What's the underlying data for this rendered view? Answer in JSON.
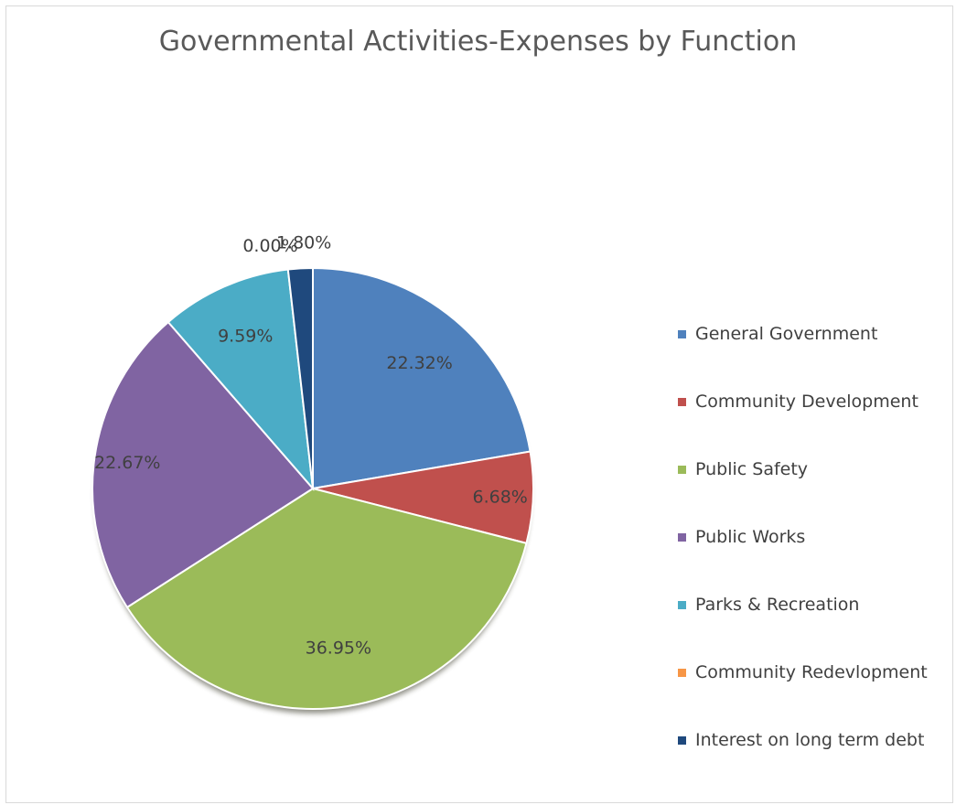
{
  "chart_data": {
    "type": "pie",
    "title": "Governmental Activities-Expenses by Function",
    "legend_position": "right",
    "slices": [
      {
        "label": "General Government",
        "value": 22.32,
        "display": "22.32%",
        "color": "#4f81bd"
      },
      {
        "label": "Community Development",
        "value": 6.68,
        "display": "6.68%",
        "color": "#c0504d"
      },
      {
        "label": "Public Safety",
        "value": 36.95,
        "display": "36.95%",
        "color": "#9bbb59"
      },
      {
        "label": "Public Works",
        "value": 22.67,
        "display": "22.67%",
        "color": "#8064a2"
      },
      {
        "label": "Parks & Recreation",
        "value": 9.59,
        "display": "9.59%",
        "color": "#4bacc6"
      },
      {
        "label": "Community Redevlopment",
        "value": 0.0,
        "display": "0.00%",
        "color": "#f79646"
      },
      {
        "label": "Interest on long term debt",
        "value": 1.8,
        "display": "1.80%",
        "color": "#1f497d"
      }
    ]
  }
}
